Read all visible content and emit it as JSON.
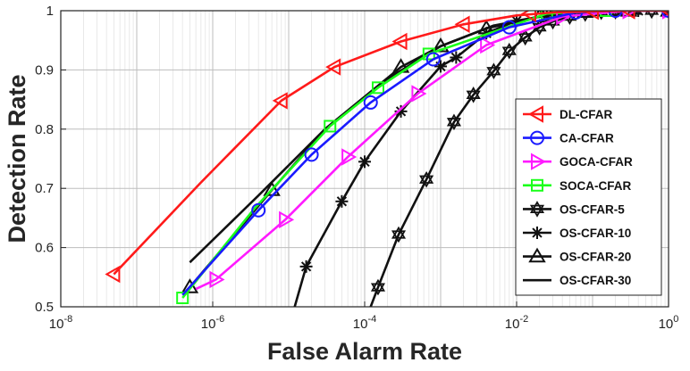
{
  "chart_data": {
    "type": "line",
    "title": "",
    "xlabel": "False Alarm Rate",
    "ylabel": "Detection Rate",
    "xscale": "log",
    "xlim": [
      1e-08,
      1
    ],
    "ylim": [
      0.5,
      1.0
    ],
    "grid": true,
    "legend_position": "bottom-right",
    "x_ticks": [
      {
        "value": 1e-08,
        "base": "10",
        "exp": "-8"
      },
      {
        "value": 1e-06,
        "base": "10",
        "exp": "-6"
      },
      {
        "value": 0.0001,
        "base": "10",
        "exp": "-4"
      },
      {
        "value": 0.01,
        "base": "10",
        "exp": "-2"
      },
      {
        "value": 1,
        "base": "10",
        "exp": "0"
      }
    ],
    "y_ticks": [
      {
        "value": 0.5,
        "label": "0.5"
      },
      {
        "value": 0.6,
        "label": "0.6"
      },
      {
        "value": 0.7,
        "label": "0.7"
      },
      {
        "value": 0.8,
        "label": "0.8"
      },
      {
        "value": 0.9,
        "label": "0.9"
      },
      {
        "value": 1.0,
        "label": "1"
      }
    ],
    "series": [
      {
        "name": "DL-CFAR",
        "color": "#ff1a1a",
        "marker": "triangle-left",
        "x": [
          5e-08,
          7e-07,
          8e-06,
          4e-05,
          0.0003,
          0.002,
          0.01,
          0.03,
          0.1,
          0.3,
          1.0
        ],
        "y": [
          0.555,
          0.71,
          0.848,
          0.905,
          0.948,
          0.977,
          0.992,
          0.997,
          0.999,
          1.0,
          1.0
        ],
        "marker_x": [
          5e-08,
          8e-06,
          4e-05,
          0.0003,
          0.002,
          0.015,
          0.1,
          0.3,
          1.0
        ],
        "marker_y": [
          0.555,
          0.848,
          0.905,
          0.948,
          0.977,
          0.995,
          0.999,
          1.0,
          1.0
        ]
      },
      {
        "name": "CA-CFAR",
        "color": "#1a1aff",
        "marker": "circle",
        "x": [
          4e-07,
          4e-06,
          2e-05,
          0.00012,
          0.0008,
          0.008,
          0.06,
          0.2,
          1.0
        ],
        "y": [
          0.52,
          0.663,
          0.757,
          0.845,
          0.918,
          0.972,
          0.997,
          1.0,
          1.0
        ],
        "marker_x": [
          4e-06,
          2e-05,
          0.00012,
          0.0008,
          0.008,
          0.06,
          0.2,
          1.0
        ],
        "marker_y": [
          0.663,
          0.757,
          0.845,
          0.918,
          0.972,
          0.997,
          1.0,
          1.0
        ]
      },
      {
        "name": "GOCA-CFAR",
        "color": "#ff1aff",
        "marker": "triangle-right",
        "x": [
          6e-07,
          1.1e-06,
          9e-06,
          6e-05,
          0.0005,
          0.004,
          0.04,
          0.3,
          1.0
        ],
        "y": [
          0.53,
          0.546,
          0.647,
          0.753,
          0.86,
          0.942,
          0.99,
          1.0,
          1.0
        ],
        "marker_x": [
          1.1e-06,
          9e-06,
          6e-05,
          0.0005,
          0.004,
          0.04,
          0.3,
          1.0
        ],
        "marker_y": [
          0.546,
          0.647,
          0.753,
          0.86,
          0.942,
          0.99,
          1.0,
          1.0
        ]
      },
      {
        "name": "SOCA-CFAR",
        "color": "#1aff1a",
        "marker": "square",
        "x": [
          4e-07,
          3.5e-06,
          3.5e-05,
          0.00015,
          0.0007,
          0.025,
          0.15,
          1.0
        ],
        "y": [
          0.515,
          0.665,
          0.805,
          0.87,
          0.927,
          0.995,
          1.0,
          1.0
        ],
        "marker_x": [
          4e-07,
          3.5e-05,
          0.00015,
          0.0007,
          0.025,
          0.15,
          1.0
        ],
        "marker_y": [
          0.515,
          0.805,
          0.87,
          0.927,
          0.995,
          1.0,
          1.0
        ]
      },
      {
        "name": "OS-CFAR-5",
        "color": "#111111",
        "marker": "hexagram",
        "x": [
          0.00012,
          0.00015,
          0.00028,
          0.00065,
          0.0015,
          0.0027,
          0.005,
          0.008,
          0.013,
          0.02,
          0.03,
          0.05,
          0.08,
          0.13,
          0.2,
          0.35,
          0.6,
          1.0
        ],
        "y": [
          0.5,
          0.533,
          0.622,
          0.715,
          0.812,
          0.858,
          0.898,
          0.932,
          0.955,
          0.972,
          0.982,
          0.99,
          0.995,
          0.998,
          0.999,
          1.0,
          1.0,
          1.0
        ],
        "marker_x": [
          0.00015,
          0.00028,
          0.00065,
          0.0015,
          0.0027,
          0.005,
          0.008,
          0.013,
          0.02,
          0.03,
          0.05,
          0.08,
          0.13,
          0.2,
          0.35,
          0.6,
          1.0
        ],
        "marker_y": [
          0.533,
          0.622,
          0.715,
          0.812,
          0.858,
          0.898,
          0.932,
          0.955,
          0.972,
          0.982,
          0.99,
          0.995,
          0.998,
          0.999,
          1.0,
          1.0,
          1.0
        ]
      },
      {
        "name": "OS-CFAR-10",
        "color": "#111111",
        "marker": "asterisk",
        "x": [
          1.2e-05,
          1.7e-05,
          5e-05,
          0.0001,
          0.0003,
          0.001,
          0.0016,
          0.004,
          0.01,
          0.025,
          0.05,
          0.1,
          0.2,
          0.4,
          1.0
        ],
        "y": [
          0.5,
          0.568,
          0.678,
          0.745,
          0.83,
          0.906,
          0.921,
          0.962,
          0.983,
          0.992,
          0.996,
          0.999,
          1.0,
          1.0,
          1.0
        ],
        "marker_x": [
          1.7e-05,
          5e-05,
          0.0001,
          0.0003,
          0.001,
          0.0016,
          0.004,
          0.01,
          0.025,
          0.05,
          0.1,
          0.2,
          0.4,
          1.0
        ],
        "marker_y": [
          0.568,
          0.678,
          0.745,
          0.83,
          0.906,
          0.921,
          0.962,
          0.983,
          0.992,
          0.996,
          0.999,
          1.0,
          1.0,
          1.0
        ]
      },
      {
        "name": "OS-CFAR-20",
        "color": "#111111",
        "marker": "triangle-up",
        "x": [
          5e-07,
          6e-06,
          3e-05,
          0.0003,
          0.001,
          0.004,
          0.02,
          0.08,
          0.3,
          1.0
        ],
        "y": [
          0.533,
          0.697,
          0.8,
          0.905,
          0.94,
          0.97,
          0.99,
          0.998,
          1.0,
          1.0
        ],
        "marker_x": [
          5e-07,
          6e-06,
          0.0003,
          0.001,
          0.004,
          0.02,
          0.08,
          0.3,
          1.0
        ],
        "marker_y": [
          0.533,
          0.697,
          0.905,
          0.94,
          0.97,
          0.99,
          0.998,
          1.0,
          1.0
        ]
      },
      {
        "name": "OS-CFAR-30",
        "color": "#111111",
        "marker": "none",
        "x": [
          5e-07,
          4e-06,
          3e-05,
          0.0002,
          0.001,
          0.005,
          0.03,
          0.15,
          1.0
        ],
        "y": [
          0.575,
          0.688,
          0.8,
          0.885,
          0.94,
          0.975,
          0.994,
          1.0,
          1.0
        ],
        "marker_x": [],
        "marker_y": []
      }
    ]
  }
}
